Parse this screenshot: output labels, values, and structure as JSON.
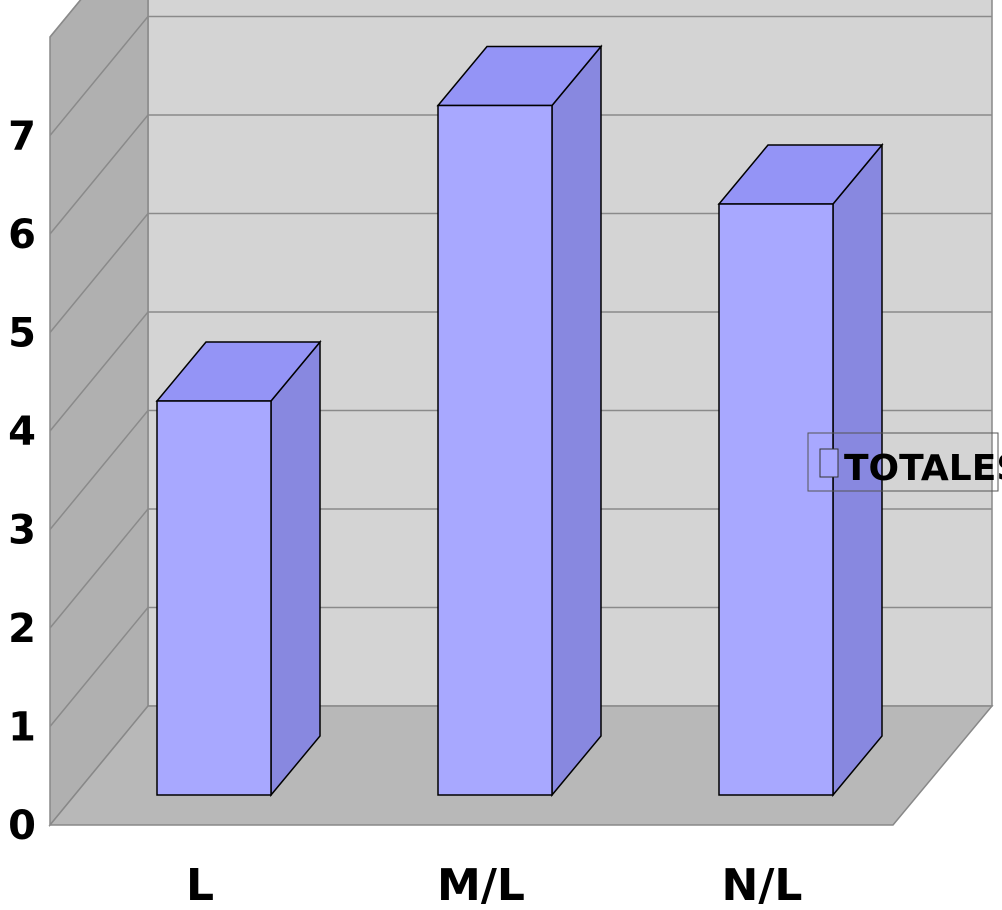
{
  "chart_data": {
    "type": "bar",
    "style": "3d-column",
    "categories": [
      "L",
      "M/L",
      "N/L"
    ],
    "series": [
      {
        "name": "TOTALES",
        "values": [
          4,
          7,
          6
        ]
      }
    ],
    "ylim": [
      0,
      7
    ],
    "yticks": [
      "0",
      "1",
      "2",
      "3",
      "4",
      "5",
      "6",
      "7"
    ],
    "title": "",
    "xlabel": "",
    "ylabel": "",
    "grid": true,
    "legend_position": "right",
    "colors": {
      "bar_front": "#a8a8ff",
      "bar_top": "#9494f6",
      "bar_side": "#8888e0",
      "back_wall": "#d4d4d4",
      "side_wall": "#b0b0b0",
      "floor": "#b8b8b8",
      "grid": "#8a8a8a"
    }
  }
}
